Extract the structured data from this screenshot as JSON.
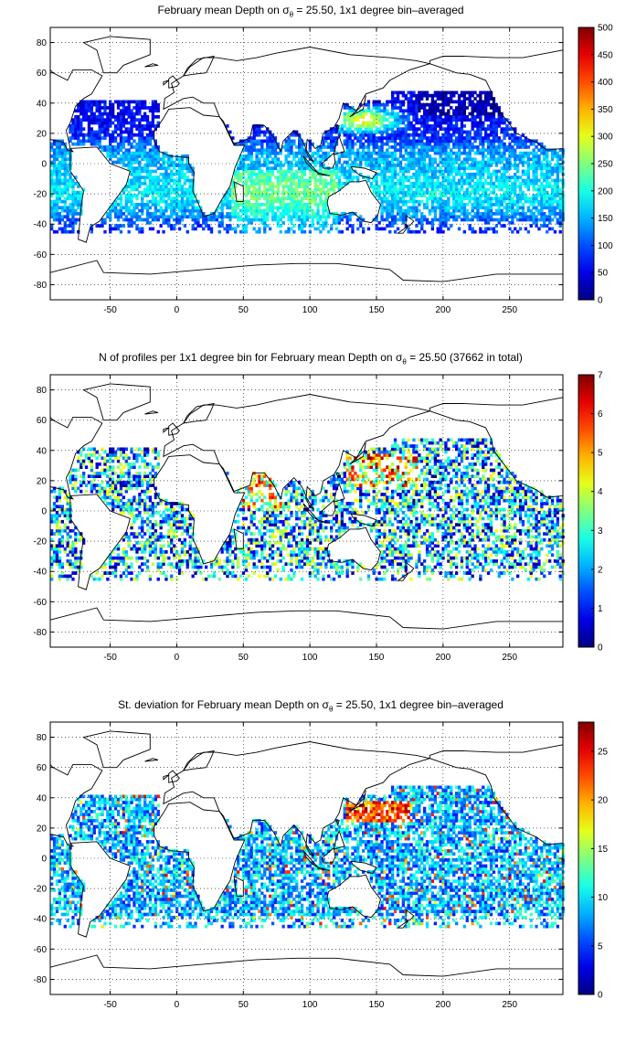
{
  "x_ticks": [
    "-50",
    "0",
    "50",
    "100",
    "150",
    "200",
    "250"
  ],
  "y_ticks": [
    "80",
    "60",
    "40",
    "20",
    "0",
    "-20",
    "-40",
    "-60",
    "-80"
  ],
  "panels": [
    {
      "title_pre": "February mean Depth on ",
      "title_sym": "σ",
      "title_sub": "θ",
      "title_post": " = 25.50, 1x1 degree bin–averaged",
      "colorbar_ticks": [
        "500",
        "450",
        "400",
        "350",
        "300",
        "250",
        "200",
        "150",
        "100",
        "50",
        "0"
      ],
      "colorbar_range": [
        0,
        500
      ]
    },
    {
      "title_pre": "N of profiles per 1x1 degree bin for February mean Depth on ",
      "title_sym": "σ",
      "title_sub": "θ",
      "title_post": " = 25.50 (37662 in total)",
      "colorbar_ticks": [
        "7",
        "6",
        "5",
        "4",
        "3",
        "2",
        "1",
        "0"
      ],
      "colorbar_range": [
        0,
        7
      ]
    },
    {
      "title_pre": "St. deviation for February mean Depth on ",
      "title_sym": "σ",
      "title_sub": "θ",
      "title_post": " = 25.50, 1x1 degree bin–averaged",
      "colorbar_ticks": [
        "25",
        "20",
        "15",
        "10",
        "5",
        "0"
      ],
      "colorbar_range": [
        0,
        28
      ]
    }
  ],
  "map": {
    "lon_range": [
      -95,
      290
    ],
    "lat_range": [
      -90,
      90
    ],
    "colormap": "jet",
    "grid": "dotted"
  }
}
